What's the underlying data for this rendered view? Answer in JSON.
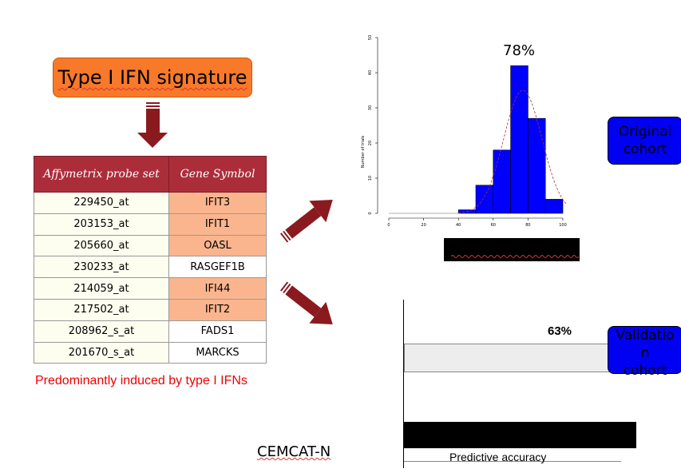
{
  "title": "Type I IFN signature",
  "table": {
    "headers": [
      "Affymetrix probe set",
      "Gene Symbol"
    ],
    "rows": [
      {
        "probe": "229450_at",
        "symbol": "IFIT3",
        "highlight": true
      },
      {
        "probe": "203153_at",
        "symbol": "IFIT1",
        "highlight": true
      },
      {
        "probe": "205660_at",
        "symbol": "OASL",
        "highlight": true
      },
      {
        "probe": "230233_at",
        "symbol": "RASGEF1B",
        "highlight": false
      },
      {
        "probe": "214059_at",
        "symbol": "IFI44",
        "highlight": true
      },
      {
        "probe": "217502_at",
        "symbol": "IFIT2",
        "highlight": true
      },
      {
        "probe": "208962_s_at",
        "symbol": "FADS1",
        "highlight": false
      },
      {
        "probe": "201670_s_at",
        "symbol": "MARCKS",
        "highlight": false
      }
    ]
  },
  "caption": "Predominantly induced by type I IFNs",
  "histogram": {
    "percent_label": "78%",
    "ylabel": "Number of trials",
    "xticks": [
      "0",
      "20",
      "40",
      "60",
      "80",
      "100"
    ],
    "yticks": [
      "0",
      "10",
      "20",
      "30",
      "40",
      "50"
    ],
    "bins": [
      {
        "x0": 40,
        "x1": 50,
        "count": 1
      },
      {
        "x0": 50,
        "x1": 60,
        "count": 8
      },
      {
        "x0": 60,
        "x1": 70,
        "count": 18
      },
      {
        "x0": 70,
        "x1": 80,
        "count": 42
      },
      {
        "x0": 80,
        "x1": 90,
        "count": 27
      },
      {
        "x0": 90,
        "x1": 100,
        "count": 4
      }
    ],
    "xlim": [
      0,
      100
    ],
    "ylim": [
      0,
      50
    ],
    "bar_color": "#0000ff",
    "curve_color": "#b03030"
  },
  "original_cohort": {
    "line1": "Original",
    "line2": "cohort"
  },
  "validation": {
    "percent_label": "63%",
    "box_lines": [
      "Validatio",
      "n",
      "cohort"
    ],
    "bottom_label": "Predictive accuracy",
    "cut_label": "CEMCAT-N"
  },
  "colors": {
    "title_box": "#f8792a",
    "header": "#ac2d3a",
    "highlight": "#fbb58e",
    "arrow": "#8b1a1f",
    "cohort_box": "#0000f2",
    "caption": "#e00000"
  }
}
